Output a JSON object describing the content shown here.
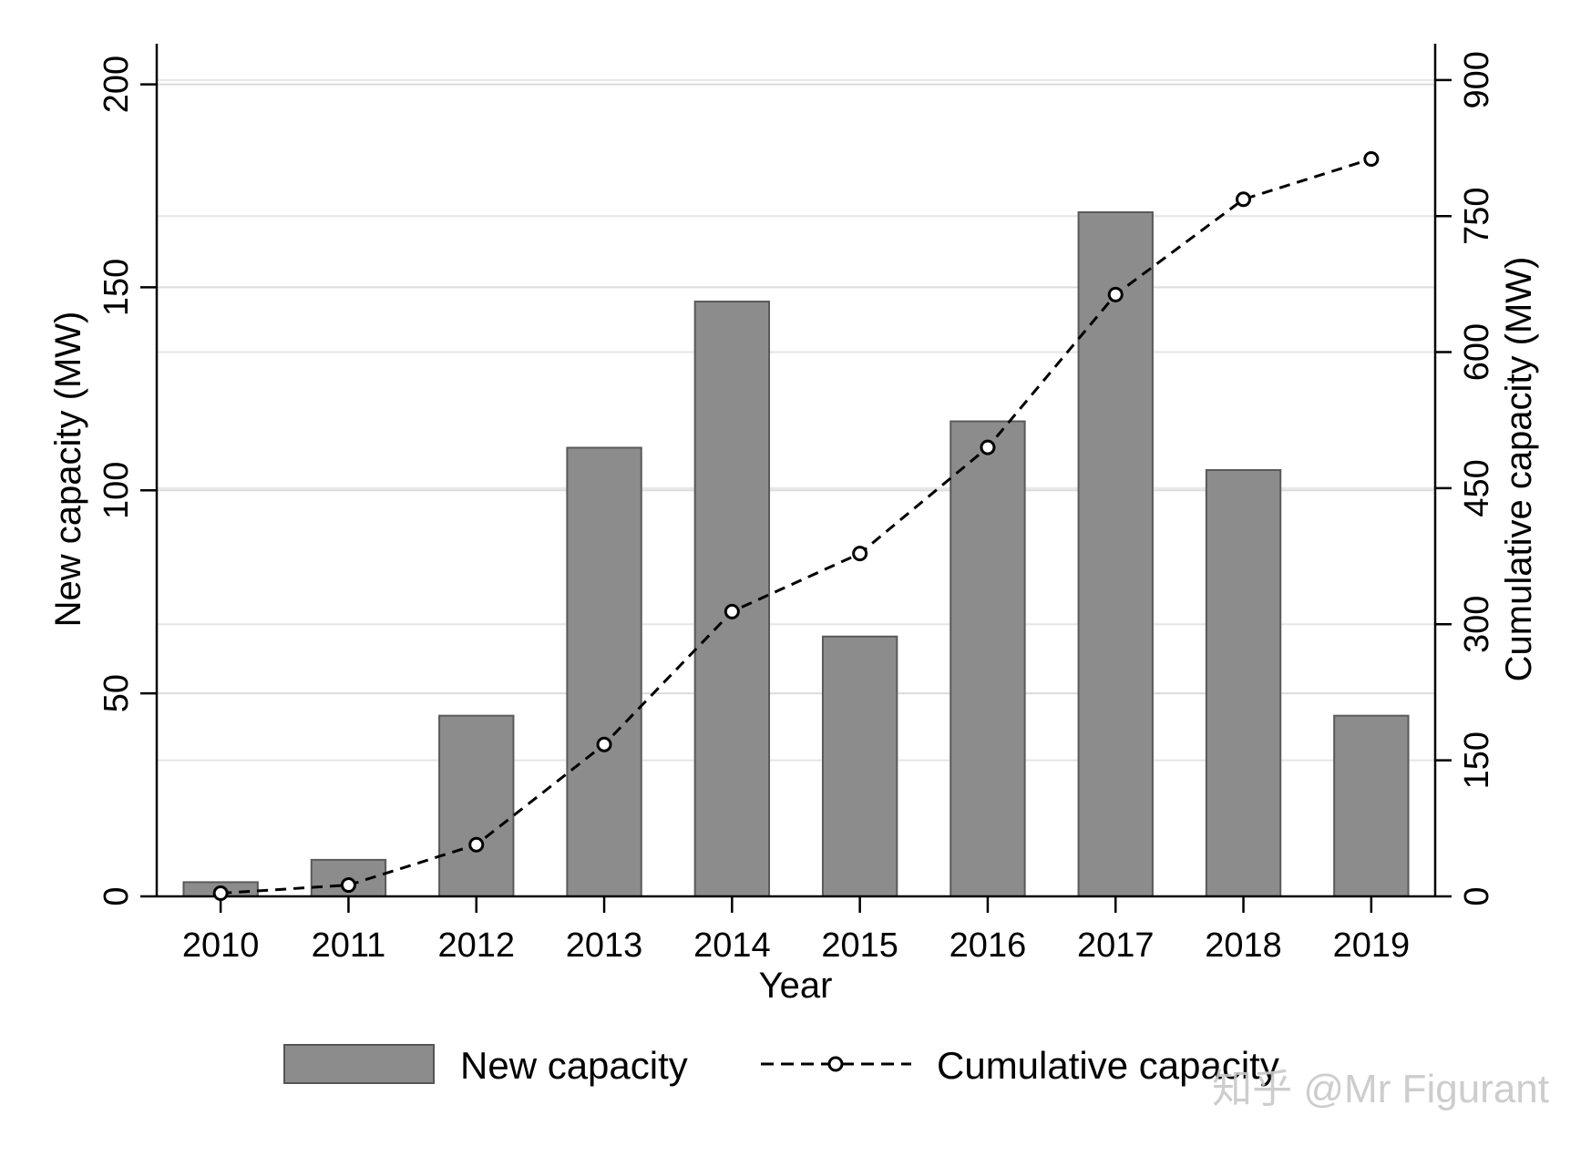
{
  "chart_data": {
    "type": "bar",
    "categories": [
      "2010",
      "2011",
      "2012",
      "2013",
      "2014",
      "2015",
      "2016",
      "2017",
      "2018",
      "2019"
    ],
    "series": [
      {
        "name": "New capacity",
        "type": "bar",
        "axis": "left",
        "color": "#8c8c8c",
        "values": [
          3.5,
          9,
          44.5,
          110.5,
          146.5,
          64,
          117,
          168.5,
          105,
          44.5
        ]
      },
      {
        "name": "Cumulative capacity",
        "type": "line",
        "axis": "right",
        "style": "dashed-with-circle-markers",
        "color": "#000000",
        "values": [
          3.5,
          12.5,
          57,
          167.5,
          314,
          378,
          495,
          663.5,
          768.5,
          813
        ]
      }
    ],
    "xlabel": "Year",
    "ylabel": "New capacity (MW)",
    "y2label": "Cumulative capacity (MW)",
    "ylim": [
      0,
      210
    ],
    "yticks": [
      0,
      50,
      100,
      150,
      200
    ],
    "y2lim": [
      0,
      940
    ],
    "y2ticks": [
      0,
      150,
      300,
      450,
      600,
      750,
      900
    ],
    "grid": true,
    "legend": {
      "position": "bottom",
      "items": [
        "New capacity",
        "Cumulative capacity"
      ]
    }
  },
  "watermark": "知乎 @Mr Figurant"
}
